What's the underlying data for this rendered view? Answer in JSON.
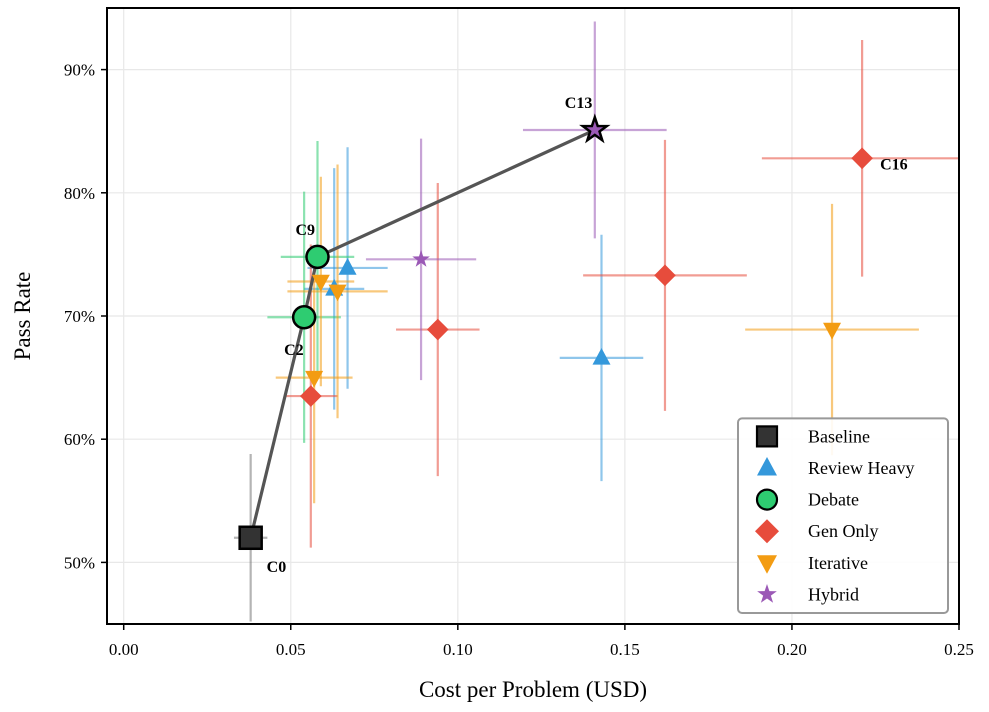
{
  "chart_data": {
    "type": "scatter",
    "xlabel": "Cost per Problem (USD)",
    "ylabel": "Pass Rate",
    "xlim": [
      -0.005,
      0.25
    ],
    "ylim": [
      45,
      95
    ],
    "xticks": [
      {
        "value": 0,
        "label": "0.00"
      },
      {
        "value": 0.05,
        "label": "0.05"
      },
      {
        "value": 0.1,
        "label": "0.10"
      },
      {
        "value": 0.15,
        "label": "0.15"
      },
      {
        "value": 0.2,
        "label": "0.20"
      },
      {
        "value": 0.25,
        "label": "0.25"
      }
    ],
    "yticks": [
      {
        "value": 50,
        "label": "50%"
      },
      {
        "value": 60,
        "label": "60%"
      },
      {
        "value": 70,
        "label": "70%"
      },
      {
        "value": 80,
        "label": "80%"
      },
      {
        "value": 90,
        "label": "90%"
      }
    ],
    "grid": true,
    "legend": "lower right",
    "series": [
      {
        "name": "Baseline",
        "color": "#333333",
        "marker": "square",
        "x": [
          0.038
        ],
        "values": [
          52.0
        ],
        "xerr": [
          0.005
        ],
        "yerr": [
          6.8
        ]
      },
      {
        "name": "Review Heavy",
        "color": "#3498db",
        "marker": "triangle-up",
        "x": [
          0.063,
          0.067,
          0.143
        ],
        "values": [
          72.2,
          73.9,
          66.6
        ],
        "xerr": [
          0.009,
          0.012,
          0.0125
        ],
        "yerr": [
          9.8,
          9.8,
          10.0
        ]
      },
      {
        "name": "Debate",
        "color": "#2ecc71",
        "marker": "circle",
        "x": [
          0.054,
          0.058
        ],
        "values": [
          69.9,
          74.8
        ],
        "xerr": [
          0.011,
          0.011
        ],
        "yerr": [
          10.2,
          9.4
        ]
      },
      {
        "name": "Gen Only",
        "color": "#e74c3c",
        "marker": "diamond",
        "x": [
          0.056,
          0.094,
          0.162,
          0.221
        ],
        "values": [
          63.5,
          68.9,
          73.3,
          82.8
        ],
        "xerr": [
          0.008,
          0.0125,
          0.0245,
          0.03
        ],
        "yerr": [
          12.3,
          11.9,
          11.0,
          9.6
        ]
      },
      {
        "name": "Iterative",
        "color": "#f39c12",
        "marker": "triangle-down",
        "x": [
          0.057,
          0.059,
          0.064,
          0.212
        ],
        "values": [
          65.0,
          72.8,
          72.0,
          68.9
        ],
        "xerr": [
          0.0115,
          0.01,
          0.015,
          0.026
        ],
        "yerr": [
          10.2,
          8.5,
          10.3,
          10.2
        ]
      },
      {
        "name": "Hybrid",
        "color": "#9b59b6",
        "marker": "star",
        "x": [
          0.089,
          0.141
        ],
        "values": [
          74.6,
          85.1
        ],
        "xerr": [
          0.0165,
          0.0215
        ],
        "yerr": [
          9.8,
          8.8
        ]
      }
    ],
    "frontier": {
      "color": "#555555",
      "x": [
        0.038,
        0.054,
        0.058,
        0.141
      ],
      "values": [
        52.0,
        69.9,
        74.8,
        85.1
      ]
    },
    "annotations": [
      {
        "text": "C0",
        "x": 0.038,
        "y": 52.0
      },
      {
        "text": "C2",
        "x": 0.054,
        "y": 69.9
      },
      {
        "text": "C9",
        "x": 0.058,
        "y": 74.8
      },
      {
        "text": "C13",
        "x": 0.141,
        "y": 85.1
      },
      {
        "text": "C16",
        "x": 0.221,
        "y": 82.8
      }
    ]
  }
}
